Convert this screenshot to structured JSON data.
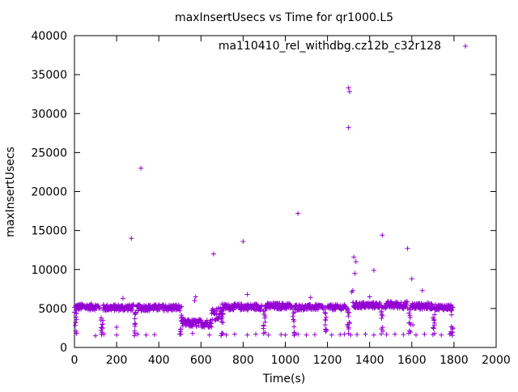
{
  "chart_data": {
    "type": "scatter",
    "title": "maxInsertUsecs vs Time for qr1000.L5",
    "xlabel": "Time(s)",
    "ylabel": "maxInsertUsecs",
    "xlim": [
      0,
      2000
    ],
    "ylim": [
      0,
      40000
    ],
    "x_ticks": [
      "0",
      "200",
      "400",
      "600",
      "800",
      "1000",
      "1200",
      "1400",
      "1600",
      "1800",
      "2000"
    ],
    "y_ticks": [
      "0",
      "5000",
      "10000",
      "15000",
      "20000",
      "25000",
      "30000",
      "35000",
      "40000"
    ],
    "grid": false,
    "legend_position": "top-right",
    "marker": "+",
    "series": [
      {
        "name": "ma110410_rel_withdbg.cz12b_c32r128",
        "color": "#9400d3",
        "baseline_segments": [
          {
            "x": [
              5,
              120
            ],
            "y": [
              4800,
              5600
            ]
          },
          {
            "x": [
              135,
              280
            ],
            "y": [
              4700,
              5500
            ]
          },
          {
            "x": [
              295,
              500
            ],
            "y": [
              4700,
              5500
            ]
          },
          {
            "x": [
              510,
              650
            ],
            "y": [
              2600,
              3600
            ]
          },
          {
            "x": [
              650,
              700
            ],
            "y": [
              3500,
              5200
            ]
          },
          {
            "x": [
              700,
              890
            ],
            "y": [
              4800,
              5600
            ]
          },
          {
            "x": [
              905,
              1030
            ],
            "y": [
              4900,
              5700
            ]
          },
          {
            "x": [
              1045,
              1180
            ],
            "y": [
              4800,
              5500
            ]
          },
          {
            "x": [
              1200,
              1290
            ],
            "y": [
              4800,
              5500
            ]
          },
          {
            "x": [
              1320,
              1450
            ],
            "y": [
              5000,
              5800
            ]
          },
          {
            "x": [
              1470,
              1580
            ],
            "y": [
              5000,
              5900
            ]
          },
          {
            "x": [
              1595,
              1700
            ],
            "y": [
              4900,
              5700
            ]
          },
          {
            "x": [
              1710,
              1790
            ],
            "y": [
              4800,
              5500
            ]
          }
        ],
        "dips": [
          5,
          130,
          285,
          505,
          700,
          900,
          1040,
          1190,
          1300,
          1460,
          1590,
          1705,
          1790
        ],
        "low_points": [
          [
            10,
            1800
          ],
          [
            100,
            1500
          ],
          [
            140,
            1700
          ],
          [
            200,
            1600
          ],
          [
            300,
            1700
          ],
          [
            340,
            1600
          ],
          [
            380,
            1650
          ],
          [
            500,
            1700
          ],
          [
            560,
            1800
          ],
          [
            640,
            1600
          ],
          [
            720,
            1600
          ],
          [
            760,
            1700
          ],
          [
            820,
            1600
          ],
          [
            860,
            1700
          ],
          [
            920,
            1600
          ],
          [
            980,
            1650
          ],
          [
            1000,
            1600
          ],
          [
            1060,
            1700
          ],
          [
            1100,
            1600
          ],
          [
            1140,
            1650
          ],
          [
            1220,
            1600
          ],
          [
            1260,
            1650
          ],
          [
            1280,
            1700
          ],
          [
            1310,
            1600
          ],
          [
            1340,
            1650
          ],
          [
            1380,
            1700
          ],
          [
            1420,
            1600
          ],
          [
            1480,
            1650
          ],
          [
            1520,
            1700
          ],
          [
            1560,
            1650
          ],
          [
            1620,
            1600
          ],
          [
            1660,
            1700
          ],
          [
            1700,
            1650
          ],
          [
            1740,
            1600
          ],
          [
            1780,
            1700
          ],
          [
            1305,
            3100
          ],
          [
            1605,
            2900
          ],
          [
            200,
            2600
          ]
        ],
        "outliers": [
          [
            270,
            14000
          ],
          [
            315,
            23000
          ],
          [
            660,
            12000
          ],
          [
            800,
            13600
          ],
          [
            1060,
            17200
          ],
          [
            1300,
            33300
          ],
          [
            1305,
            32800
          ],
          [
            1300,
            28200
          ],
          [
            1325,
            11600
          ],
          [
            1335,
            11000
          ],
          [
            1330,
            9500
          ],
          [
            1320,
            7300
          ],
          [
            1315,
            7100
          ],
          [
            1420,
            9900
          ],
          [
            1460,
            14400
          ],
          [
            1580,
            12700
          ],
          [
            1600,
            8800
          ],
          [
            1650,
            7300
          ],
          [
            1400,
            6500
          ],
          [
            820,
            6800
          ],
          [
            1120,
            6400
          ],
          [
            575,
            6500
          ],
          [
            570,
            6000
          ],
          [
            230,
            6300
          ]
        ]
      }
    ]
  }
}
